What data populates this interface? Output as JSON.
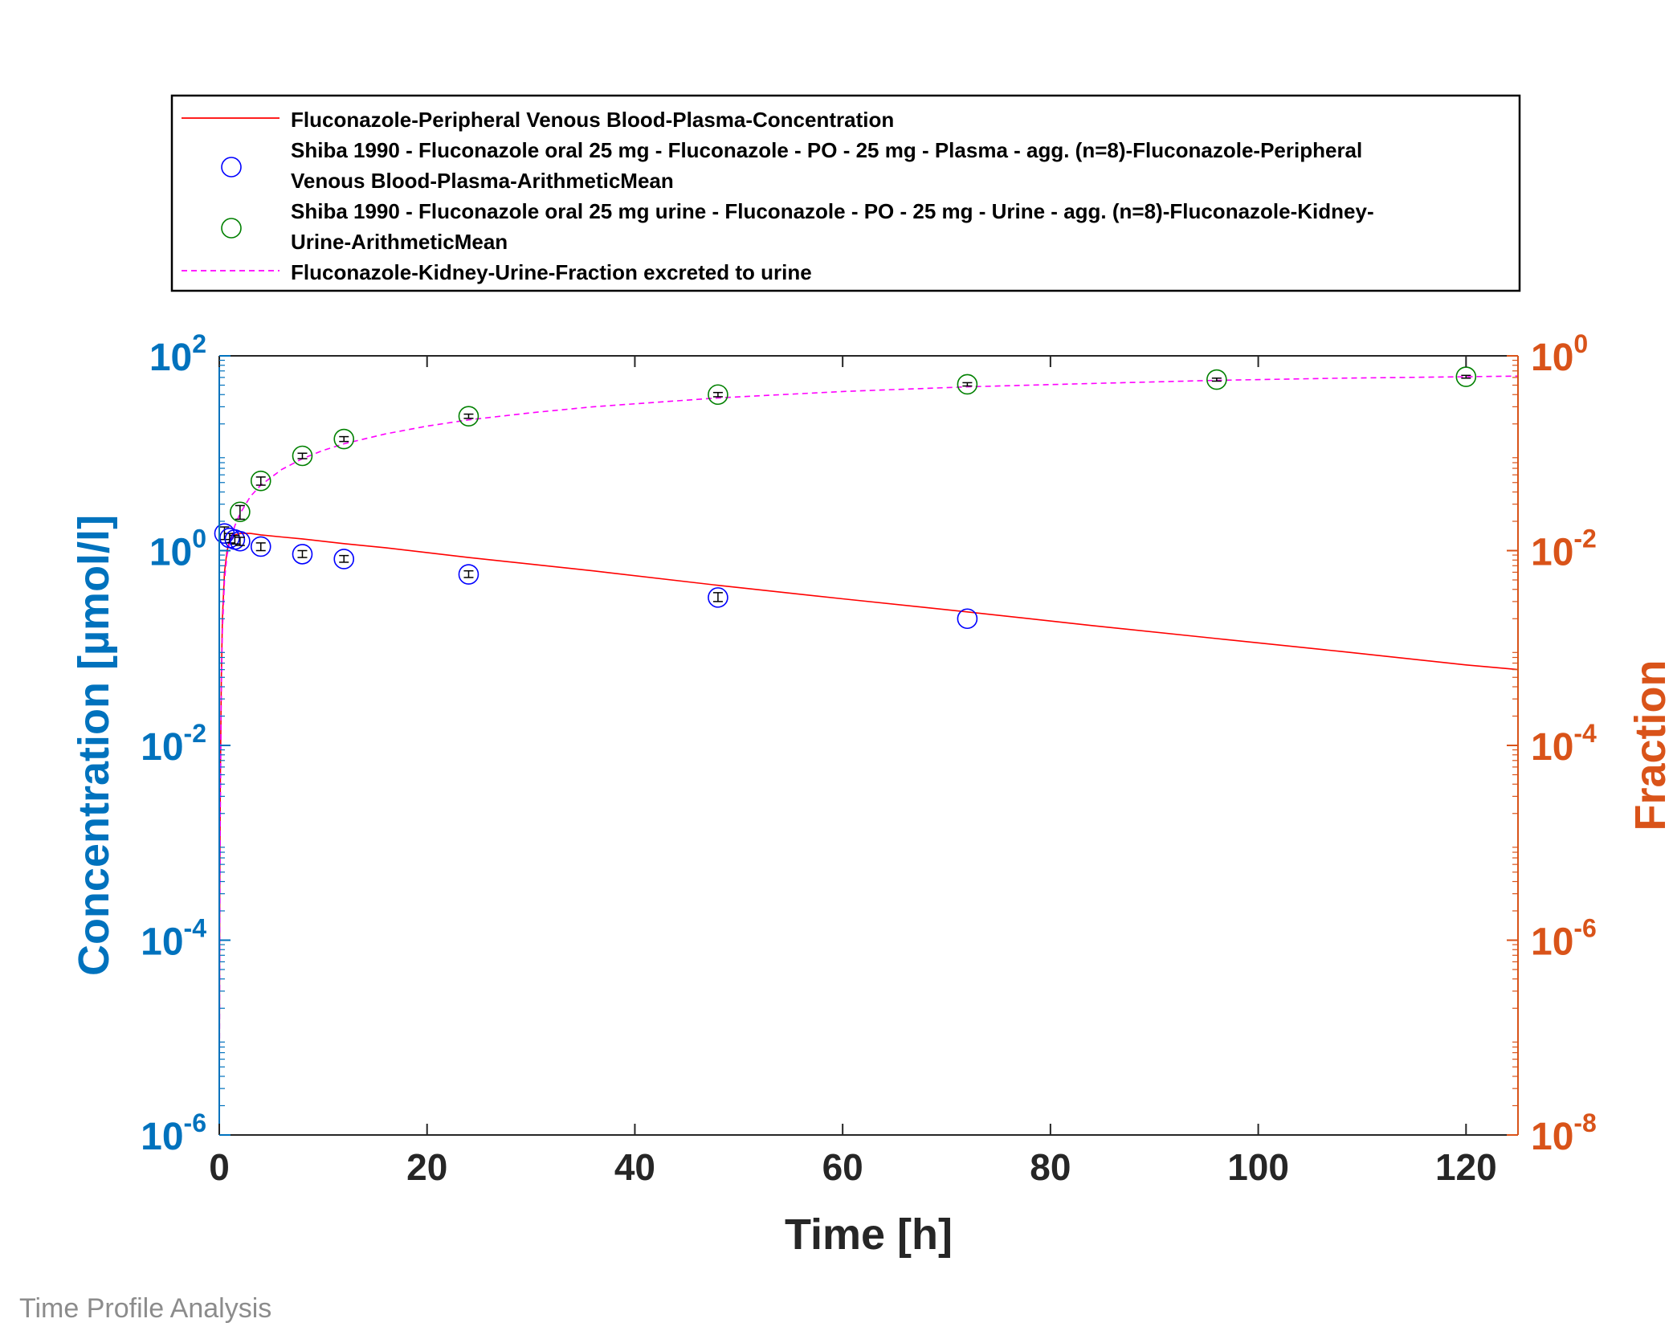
{
  "footer": {
    "text": "Time Profile Analysis"
  },
  "colors": {
    "left_axis": "#0072BD",
    "right_axis": "#D95319",
    "axis_black": "#262626",
    "plasma_sim": "#FF0000",
    "plasma_obs": "#0000FF",
    "urine_obs": "#008000",
    "urine_sim": "#FF00FF",
    "error_bar": "#000000"
  },
  "chart_data": {
    "type": "line",
    "xlabel": "Time [h]",
    "ylabel_left": "Concentration [µmol/l]",
    "ylabel_right": "Fraction",
    "xlim": [
      0,
      125
    ],
    "xticks": [
      0,
      20,
      40,
      60,
      80,
      100,
      120
    ],
    "ylim_left": [
      1e-06,
      100
    ],
    "yscale_left": "log",
    "yticks_left": [
      {
        "base": "10",
        "exp": "-6",
        "value": 1e-06
      },
      {
        "base": "10",
        "exp": "-4",
        "value": 0.0001
      },
      {
        "base": "10",
        "exp": "-2",
        "value": 0.01
      },
      {
        "base": "10",
        "exp": "0",
        "value": 1
      },
      {
        "base": "10",
        "exp": "2",
        "value": 100
      }
    ],
    "ylim_right": [
      1e-08,
      1
    ],
    "yscale_right": "log",
    "yticks_right": [
      {
        "base": "10",
        "exp": "-8",
        "value": 1e-08
      },
      {
        "base": "10",
        "exp": "-6",
        "value": 1e-06
      },
      {
        "base": "10",
        "exp": "-4",
        "value": 0.0001
      },
      {
        "base": "10",
        "exp": "-2",
        "value": 0.01
      },
      {
        "base": "10",
        "exp": "0",
        "value": 1
      }
    ],
    "legend_position": "top",
    "series": [
      {
        "name": "Fluconazole-Peripheral Venous Blood-Plasma-Concentration",
        "legend_lines": [
          "Fluconazole-Peripheral Venous Blood-Plasma-Concentration"
        ],
        "kind": "line",
        "axis": "left",
        "style": "solid",
        "color": "#FF0000",
        "x": [
          0,
          0.05,
          0.1,
          0.2,
          0.3,
          0.5,
          0.75,
          1,
          1.5,
          2,
          3,
          4,
          6,
          8,
          12,
          16,
          24,
          36,
          48,
          60,
          72,
          84,
          96,
          108,
          120,
          125
        ],
        "y": [
          1e-06,
          0.0003,
          0.004,
          0.05,
          0.2,
          0.6,
          1.0,
          1.25,
          1.45,
          1.5,
          1.5,
          1.45,
          1.38,
          1.32,
          1.18,
          1.07,
          0.85,
          0.62,
          0.44,
          0.32,
          0.235,
          0.17,
          0.125,
          0.092,
          0.067,
          0.06
        ]
      },
      {
        "name": "Shiba 1990 - Fluconazole oral 25 mg - Fluconazole - PO - 25 mg - Plasma - agg. (n=8)-Fluconazole-Peripheral Venous Blood-Plasma-ArithmeticMean",
        "legend_lines": [
          "Shiba 1990 - Fluconazole oral 25 mg - Fluconazole - PO - 25 mg - Plasma - agg. (n=8)-Fluconazole-Peripheral",
          "Venous Blood-Plasma-ArithmeticMean"
        ],
        "kind": "markers",
        "axis": "left",
        "marker": "circle",
        "color": "#0000FF",
        "x": [
          0.5,
          1,
          1.5,
          2,
          4,
          8,
          12,
          24,
          48,
          72
        ],
        "y": [
          1.5,
          1.35,
          1.3,
          1.25,
          1.1,
          0.92,
          0.82,
          0.57,
          0.33,
          0.2
        ],
        "err_low": [
          1.3,
          1.2,
          1.17,
          1.13,
          1.0,
          0.85,
          0.76,
          0.53,
          0.3,
          null
        ],
        "err_high": [
          1.75,
          1.5,
          1.43,
          1.37,
          1.2,
          1.0,
          0.89,
          0.62,
          0.37,
          null
        ]
      },
      {
        "name": "Shiba 1990 - Fluconazole oral 25 mg urine - Fluconazole - PO - 25 mg - Urine - agg. (n=8)-Fluconazole-Kidney-Urine-ArithmeticMean",
        "legend_lines": [
          "Shiba 1990 - Fluconazole oral 25 mg urine - Fluconazole - PO - 25 mg - Urine - agg. (n=8)-Fluconazole-Kidney-",
          "Urine-ArithmeticMean"
        ],
        "kind": "markers",
        "axis": "right",
        "marker": "circle",
        "color": "#008000",
        "x": [
          2,
          4,
          8,
          12,
          24,
          48,
          72,
          96,
          120
        ],
        "y": [
          0.025,
          0.052,
          0.094,
          0.14,
          0.24,
          0.4,
          0.51,
          0.57,
          0.61
        ],
        "err_low": [
          0.021,
          0.047,
          0.088,
          0.132,
          0.228,
          0.38,
          0.49,
          0.55,
          0.59
        ],
        "err_high": [
          0.029,
          0.057,
          0.1,
          0.148,
          0.252,
          0.42,
          0.53,
          0.59,
          0.63
        ]
      },
      {
        "name": "Fluconazole-Kidney-Urine-Fraction excreted to urine",
        "legend_lines": [
          "Fluconazole-Kidney-Urine-Fraction excreted to urine"
        ],
        "kind": "line",
        "axis": "right",
        "style": "dashed",
        "color": "#FF00FF",
        "x": [
          0,
          0.05,
          0.1,
          0.2,
          0.3,
          0.5,
          0.75,
          1,
          1.5,
          2,
          3,
          4,
          6,
          8,
          10,
          12,
          16,
          20,
          24,
          30,
          36,
          48,
          60,
          72,
          84,
          96,
          108,
          120,
          125
        ],
        "y": [
          1e-08,
          1e-06,
          2e-05,
          0.0004,
          0.0015,
          0.005,
          0.009,
          0.012,
          0.018,
          0.024,
          0.036,
          0.047,
          0.068,
          0.088,
          0.107,
          0.125,
          0.158,
          0.19,
          0.22,
          0.26,
          0.3,
          0.37,
          0.43,
          0.48,
          0.52,
          0.56,
          0.59,
          0.61,
          0.62
        ]
      }
    ]
  }
}
